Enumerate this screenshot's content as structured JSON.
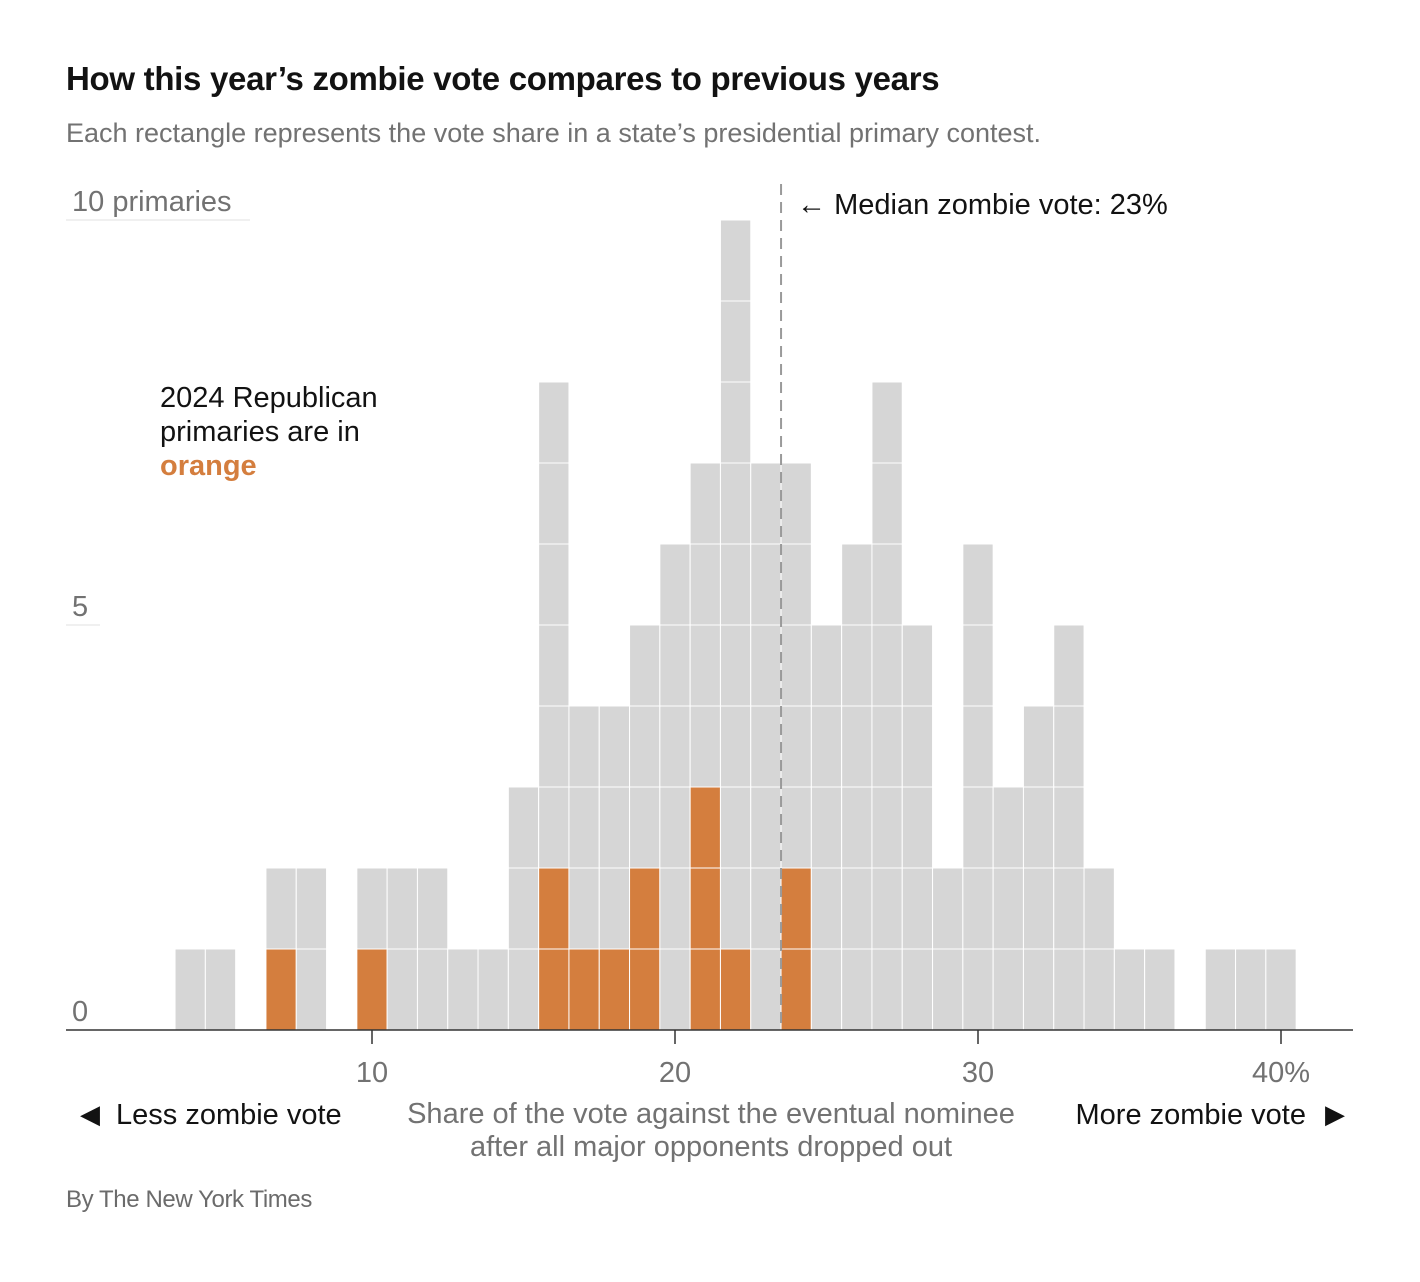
{
  "title": "How this year’s zombie vote compares to previous years",
  "subtitle": "Each rectangle represents the vote share in a state’s presidential primary contest.",
  "credit": "By The New York Times",
  "colors": {
    "historical": "#d6d6d6",
    "highlight": "#d47e3e",
    "text": "#121212",
    "muted": "#727272"
  },
  "chart_data": {
    "type": "bar",
    "subtype": "stacked unit histogram",
    "x_range": [
      0,
      42.5
    ],
    "y_range": [
      0,
      10
    ],
    "bin_width": 1,
    "bins": [
      {
        "x": 4,
        "total": 1,
        "highlight": 0
      },
      {
        "x": 5,
        "total": 1,
        "highlight": 0
      },
      {
        "x": 7,
        "total": 2,
        "highlight": 1
      },
      {
        "x": 8,
        "total": 2,
        "highlight": 0
      },
      {
        "x": 10,
        "total": 2,
        "highlight": 1
      },
      {
        "x": 11,
        "total": 2,
        "highlight": 0
      },
      {
        "x": 12,
        "total": 2,
        "highlight": 0
      },
      {
        "x": 13,
        "total": 1,
        "highlight": 0
      },
      {
        "x": 14,
        "total": 1,
        "highlight": 0
      },
      {
        "x": 15,
        "total": 3,
        "highlight": 0
      },
      {
        "x": 16,
        "total": 8,
        "highlight": 2
      },
      {
        "x": 17,
        "total": 4,
        "highlight": 1
      },
      {
        "x": 18,
        "total": 4,
        "highlight": 1
      },
      {
        "x": 19,
        "total": 5,
        "highlight": 2
      },
      {
        "x": 20,
        "total": 6,
        "highlight": 0
      },
      {
        "x": 21,
        "total": 7,
        "highlight": 3
      },
      {
        "x": 22,
        "total": 10,
        "highlight": 1
      },
      {
        "x": 23,
        "total": 7,
        "highlight": 0
      },
      {
        "x": 24,
        "total": 7,
        "highlight": 2
      },
      {
        "x": 25,
        "total": 5,
        "highlight": 0
      },
      {
        "x": 26,
        "total": 6,
        "highlight": 0
      },
      {
        "x": 27,
        "total": 8,
        "highlight": 0
      },
      {
        "x": 28,
        "total": 5,
        "highlight": 0
      },
      {
        "x": 29,
        "total": 2,
        "highlight": 0
      },
      {
        "x": 30,
        "total": 6,
        "highlight": 0
      },
      {
        "x": 31,
        "total": 3,
        "highlight": 0
      },
      {
        "x": 32,
        "total": 4,
        "highlight": 0
      },
      {
        "x": 33,
        "total": 5,
        "highlight": 0
      },
      {
        "x": 34,
        "total": 2,
        "highlight": 0
      },
      {
        "x": 35,
        "total": 1,
        "highlight": 0
      },
      {
        "x": 36,
        "total": 1,
        "highlight": 0
      },
      {
        "x": 38,
        "total": 1,
        "highlight": 0
      },
      {
        "x": 39,
        "total": 1,
        "highlight": 0
      },
      {
        "x": 40,
        "total": 1,
        "highlight": 0
      }
    ],
    "y_ticks": [
      {
        "value": 0,
        "label": "0"
      },
      {
        "value": 5,
        "label": "5"
      },
      {
        "value": 10,
        "label": "10 primaries"
      }
    ],
    "x_ticks": [
      {
        "value": 10,
        "label": "10"
      },
      {
        "value": 20,
        "label": "20"
      },
      {
        "value": 30,
        "label": "30"
      },
      {
        "value": 40,
        "label": "40%"
      }
    ],
    "median": {
      "value": 23.5,
      "label": "←  Median zombie vote: 23%"
    },
    "legend_annotation": {
      "lines": [
        "2024 Republican",
        "primaries are in"
      ],
      "highlight_word": "orange"
    },
    "xlabel_lines": [
      "Share of the vote against the eventual nominee",
      "after all major opponents dropped out"
    ],
    "left_label": "Less zombie vote",
    "right_label": "More zombie vote",
    "left_arrow": "◀",
    "right_arrow": "▶",
    "grid": false
  }
}
